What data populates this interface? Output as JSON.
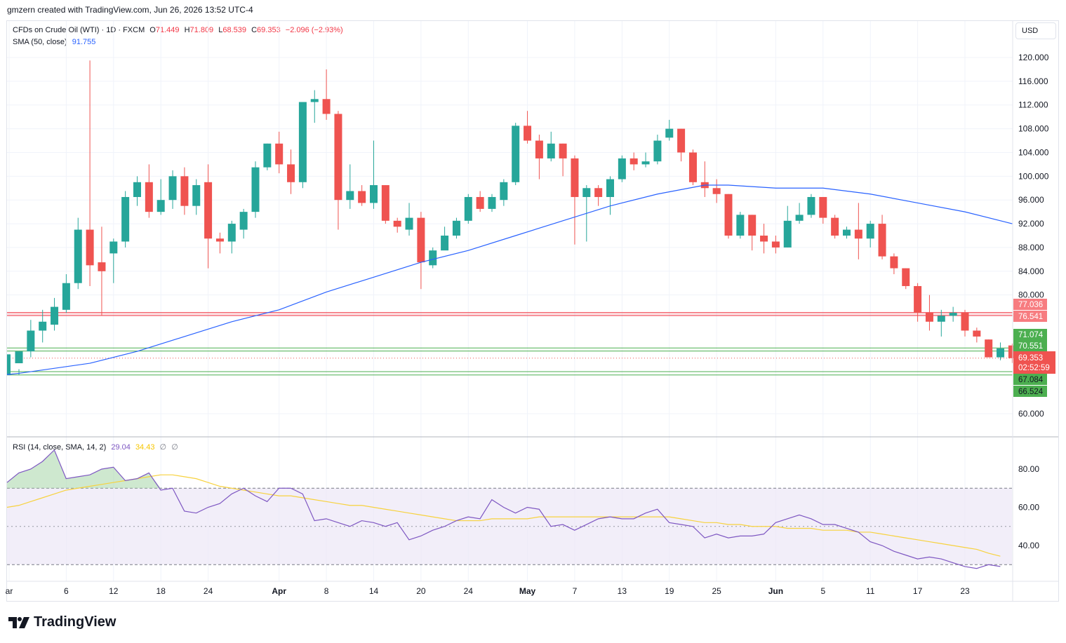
{
  "header": {
    "created_line": "gmzern created with TradingView.com, Jun 26, 2026 13:52 UTC-4"
  },
  "legend": {
    "symbol": "CFDs on Crude Oil (WTI) · 1D · FXCM",
    "open_label": "O",
    "open": "71.449",
    "high_label": "H",
    "high": "71.809",
    "low_label": "L",
    "low": "68.539",
    "close_label": "C",
    "close": "69.353",
    "change": "−2.096 (−2.93%)",
    "sma_label": "SMA (50, close)",
    "sma_value": "91.755"
  },
  "currency_button": "USD",
  "rsi_legend": {
    "label": "RSI (14, close, SMA, 14, 2)",
    "rsi_value": "29.04",
    "ma_value": "34.43",
    "extra1": "∅",
    "extra2": "∅"
  },
  "price_badges": {
    "current": "69.353",
    "countdown": "02:52:59"
  },
  "footer": {
    "brand": "TradingView"
  },
  "colors": {
    "up": "#26a69a",
    "down": "#ef5350",
    "sma": "#2962ff",
    "rsi": "#7e57c2",
    "rsi_ma": "#f7d23e",
    "resistance": "#f23645",
    "support": "#4caf50",
    "rsi_band": "#ede7f6",
    "rsi_overbought_fill": "#a5d6a7"
  },
  "chart_data": [
    {
      "type": "candlestick",
      "title": "CFDs on Crude Oil (WTI) · 1D · FXCM",
      "ylim": [
        56.0,
        124.0
      ],
      "y_ticks": [
        "60.000",
        "80.000",
        "84.000",
        "88.000",
        "92.000",
        "96.000",
        "100.000",
        "104.000",
        "108.000",
        "112.000",
        "116.000",
        "120.000"
      ],
      "x_tick_labels": [
        "ar",
        "6",
        "12",
        "18",
        "24",
        "Apr",
        "8",
        "14",
        "20",
        "24",
        "May",
        "7",
        "13",
        "19",
        "25",
        "Jun",
        "5",
        "11",
        "17",
        "23"
      ],
      "x_tick_index": [
        0,
        4,
        8,
        12,
        16,
        22,
        26,
        30,
        34,
        38,
        43,
        47,
        51,
        55,
        59,
        64,
        68,
        72,
        76,
        80
      ],
      "ohlc": [
        [
          68.5,
          70.5,
          67.5,
          66.5
        ],
        [
          70.5,
          74.0,
          75.8,
          69.5
        ],
        [
          74.0,
          75.5,
          77.5,
          72.0
        ],
        [
          75.0,
          78.0,
          79.5,
          74.0
        ],
        [
          77.5,
          82.0,
          83.5,
          77.0
        ],
        [
          82.0,
          91.0,
          93.0,
          81.0
        ],
        [
          91.0,
          85.0,
          119.5,
          81.5
        ],
        [
          85.5,
          84.0,
          91.5,
          76.5
        ],
        [
          87.0,
          89.0,
          89.5,
          82.0
        ],
        [
          89.0,
          96.5,
          97.5,
          88.0
        ],
        [
          96.5,
          99.0,
          100.0,
          95.0
        ],
        [
          99.0,
          94.0,
          102.0,
          93.0
        ],
        [
          94.0,
          96.0,
          99.5,
          93.5
        ],
        [
          96.0,
          100.0,
          101.0,
          94.5
        ],
        [
          100.0,
          95.0,
          101.5,
          93.5
        ],
        [
          95.0,
          98.5,
          99.5,
          93.5
        ],
        [
          99.0,
          89.5,
          102.0,
          84.5
        ],
        [
          89.5,
          89.0,
          90.5,
          87.0
        ],
        [
          89.0,
          92.0,
          92.5,
          87.0
        ],
        [
          91.0,
          94.0,
          94.5,
          89.5
        ],
        [
          94.0,
          101.5,
          102.5,
          93.0
        ],
        [
          101.5,
          105.5,
          105.5,
          101.0
        ],
        [
          105.5,
          102.0,
          107.5,
          100.5
        ],
        [
          102.0,
          99.0,
          104.5,
          97.0
        ],
        [
          99.0,
          112.5,
          112.5,
          98.0
        ],
        [
          112.5,
          113.0,
          114.5,
          109.0
        ],
        [
          113.0,
          110.5,
          118.0,
          109.5
        ],
        [
          110.5,
          96.0,
          111.0,
          91.0
        ],
        [
          96.0,
          97.5,
          102.0,
          94.5
        ],
        [
          97.5,
          95.5,
          98.5,
          95.0
        ],
        [
          95.5,
          98.5,
          106.0,
          94.5
        ],
        [
          98.5,
          92.5,
          98.5,
          92.0
        ],
        [
          92.5,
          91.5,
          93.0,
          90.5
        ],
        [
          91.0,
          93.0,
          95.5,
          90.0
        ],
        [
          93.0,
          85.5,
          94.0,
          81.0
        ],
        [
          85.0,
          87.5,
          88.0,
          84.5
        ],
        [
          87.5,
          90.0,
          91.5,
          88.0
        ],
        [
          90.0,
          92.5,
          93.0,
          89.5
        ],
        [
          92.5,
          96.5,
          97.0,
          92.0
        ],
        [
          96.5,
          94.5,
          97.5,
          94.0
        ],
        [
          94.5,
          96.5,
          97.0,
          94.0
        ],
        [
          96.0,
          99.0,
          99.5,
          95.0
        ],
        [
          99.0,
          108.5,
          109.0,
          98.5
        ],
        [
          108.5,
          106.0,
          111.0,
          105.5
        ],
        [
          106.0,
          103.0,
          107.0,
          99.5
        ],
        [
          103.0,
          105.5,
          107.5,
          102.5
        ],
        [
          105.5,
          103.0,
          105.5,
          100.0
        ],
        [
          103.0,
          96.5,
          103.5,
          88.5
        ],
        [
          96.5,
          98.0,
          98.5,
          89.0
        ],
        [
          98.0,
          96.5,
          98.5,
          95.0
        ],
        [
          96.5,
          99.5,
          100.0,
          93.5
        ],
        [
          99.5,
          103.0,
          103.5,
          99.0
        ],
        [
          103.0,
          102.0,
          104.0,
          101.0
        ],
        [
          102.0,
          102.5,
          104.0,
          101.5
        ],
        [
          102.5,
          106.0,
          107.0,
          102.0
        ],
        [
          106.5,
          108.0,
          109.5,
          106.0
        ],
        [
          108.0,
          104.0,
          108.0,
          102.5
        ],
        [
          104.0,
          99.0,
          104.5,
          98.5
        ],
        [
          99.0,
          98.0,
          102.5,
          96.5
        ],
        [
          98.0,
          97.0,
          99.5,
          95.5
        ],
        [
          97.0,
          90.0,
          97.0,
          89.5
        ],
        [
          90.0,
          93.5,
          94.0,
          89.5
        ],
        [
          93.5,
          90.0,
          93.5,
          87.5
        ],
        [
          90.0,
          89.0,
          92.0,
          87.0
        ],
        [
          89.0,
          88.0,
          90.0,
          87.0
        ],
        [
          88.0,
          92.5,
          95.0,
          88.0
        ],
        [
          92.5,
          93.5,
          95.5,
          92.0
        ],
        [
          93.5,
          96.5,
          97.0,
          93.0
        ],
        [
          96.5,
          93.0,
          96.5,
          92.0
        ],
        [
          93.0,
          90.0,
          93.5,
          89.5
        ],
        [
          90.0,
          91.0,
          91.5,
          89.5
        ],
        [
          91.0,
          89.5,
          95.5,
          86.0
        ],
        [
          89.5,
          92.0,
          92.5,
          88.0
        ],
        [
          92.0,
          86.5,
          93.5,
          86.0
        ],
        [
          86.5,
          84.5,
          87.0,
          83.5
        ],
        [
          84.5,
          81.5,
          84.5,
          81.0
        ],
        [
          81.5,
          77.0,
          82.0,
          75.5
        ],
        [
          77.0,
          75.5,
          80.0,
          74.0
        ],
        [
          75.5,
          76.5,
          77.5,
          73.0
        ],
        [
          76.5,
          77.0,
          78.0,
          75.5
        ],
        [
          77.0,
          74.0,
          77.5,
          73.0
        ],
        [
          74.0,
          73.0,
          74.5,
          72.0
        ],
        [
          72.5,
          69.5,
          72.5,
          69.5
        ],
        [
          69.5,
          71.0,
          72.0,
          69.0
        ],
        [
          71.5,
          69.353,
          71.809,
          68.539
        ]
      ],
      "sma50": [
        [
          0,
          66.8
        ],
        [
          6,
          68.5
        ],
        [
          10,
          70.5
        ],
        [
          14,
          73.0
        ],
        [
          18,
          75.5
        ],
        [
          22,
          77.5
        ],
        [
          26,
          80.5
        ],
        [
          30,
          83.0
        ],
        [
          34,
          85.5
        ],
        [
          38,
          87.5
        ],
        [
          42,
          90.0
        ],
        [
          46,
          92.5
        ],
        [
          50,
          95.0
        ],
        [
          54,
          97.0
        ],
        [
          58,
          98.5
        ],
        [
          60,
          98.5
        ],
        [
          64,
          98.0
        ],
        [
          68,
          98.0
        ],
        [
          72,
          97.0
        ],
        [
          76,
          95.5
        ],
        [
          80,
          94.0
        ],
        [
          84,
          92.0
        ]
      ],
      "resistance_levels": [
        "77.036",
        "76.541"
      ],
      "support_levels": [
        "71.074",
        "70.551",
        "67.084",
        "66.524"
      ],
      "current_price": "69.353"
    },
    {
      "type": "line",
      "title": "RSI (14, close, SMA, 14, 2)",
      "ylim": [
        20,
        92
      ],
      "y_ticks": [
        "40.00",
        "60.00",
        "80.00"
      ],
      "bands": [
        30,
        50,
        70
      ],
      "series": [
        {
          "name": "RSI",
          "values": [
            73,
            78,
            80,
            84,
            90,
            75,
            76,
            77,
            80,
            81,
            74,
            75,
            78,
            69,
            70,
            58,
            57,
            60,
            62,
            67,
            70,
            66,
            63,
            70,
            70,
            67,
            53,
            54,
            52,
            50,
            53,
            52,
            50,
            52,
            43,
            45,
            48,
            50,
            53,
            55,
            54,
            64,
            60,
            57,
            60,
            59,
            50,
            51,
            48,
            51,
            54,
            55,
            54,
            54,
            57,
            59,
            52,
            51,
            50,
            44,
            46,
            44,
            45,
            45,
            46,
            52,
            54,
            56,
            54,
            51,
            51,
            49,
            47,
            42,
            40,
            37,
            35,
            33,
            34,
            33,
            31,
            29,
            28,
            30,
            29.04
          ]
        },
        {
          "name": "RSI-based MA",
          "values": [
            60,
            61,
            63,
            65,
            67,
            69,
            70,
            71,
            72,
            73,
            74,
            75,
            76,
            77,
            77,
            76,
            75,
            73,
            71,
            70,
            69,
            68,
            67,
            66,
            66,
            65,
            64,
            63,
            62,
            61,
            61,
            60,
            59,
            58,
            57,
            56,
            55,
            54,
            53,
            53,
            53,
            54,
            54,
            54,
            54,
            55,
            55,
            55,
            55,
            55,
            55,
            55,
            55,
            55,
            55,
            55,
            55,
            54,
            53,
            52,
            52,
            51,
            51,
            50,
            50,
            50,
            49,
            49,
            49,
            48,
            48,
            48,
            47,
            47,
            46,
            45,
            44,
            43,
            42,
            41,
            40,
            39,
            38,
            36,
            34.43
          ]
        }
      ]
    }
  ]
}
